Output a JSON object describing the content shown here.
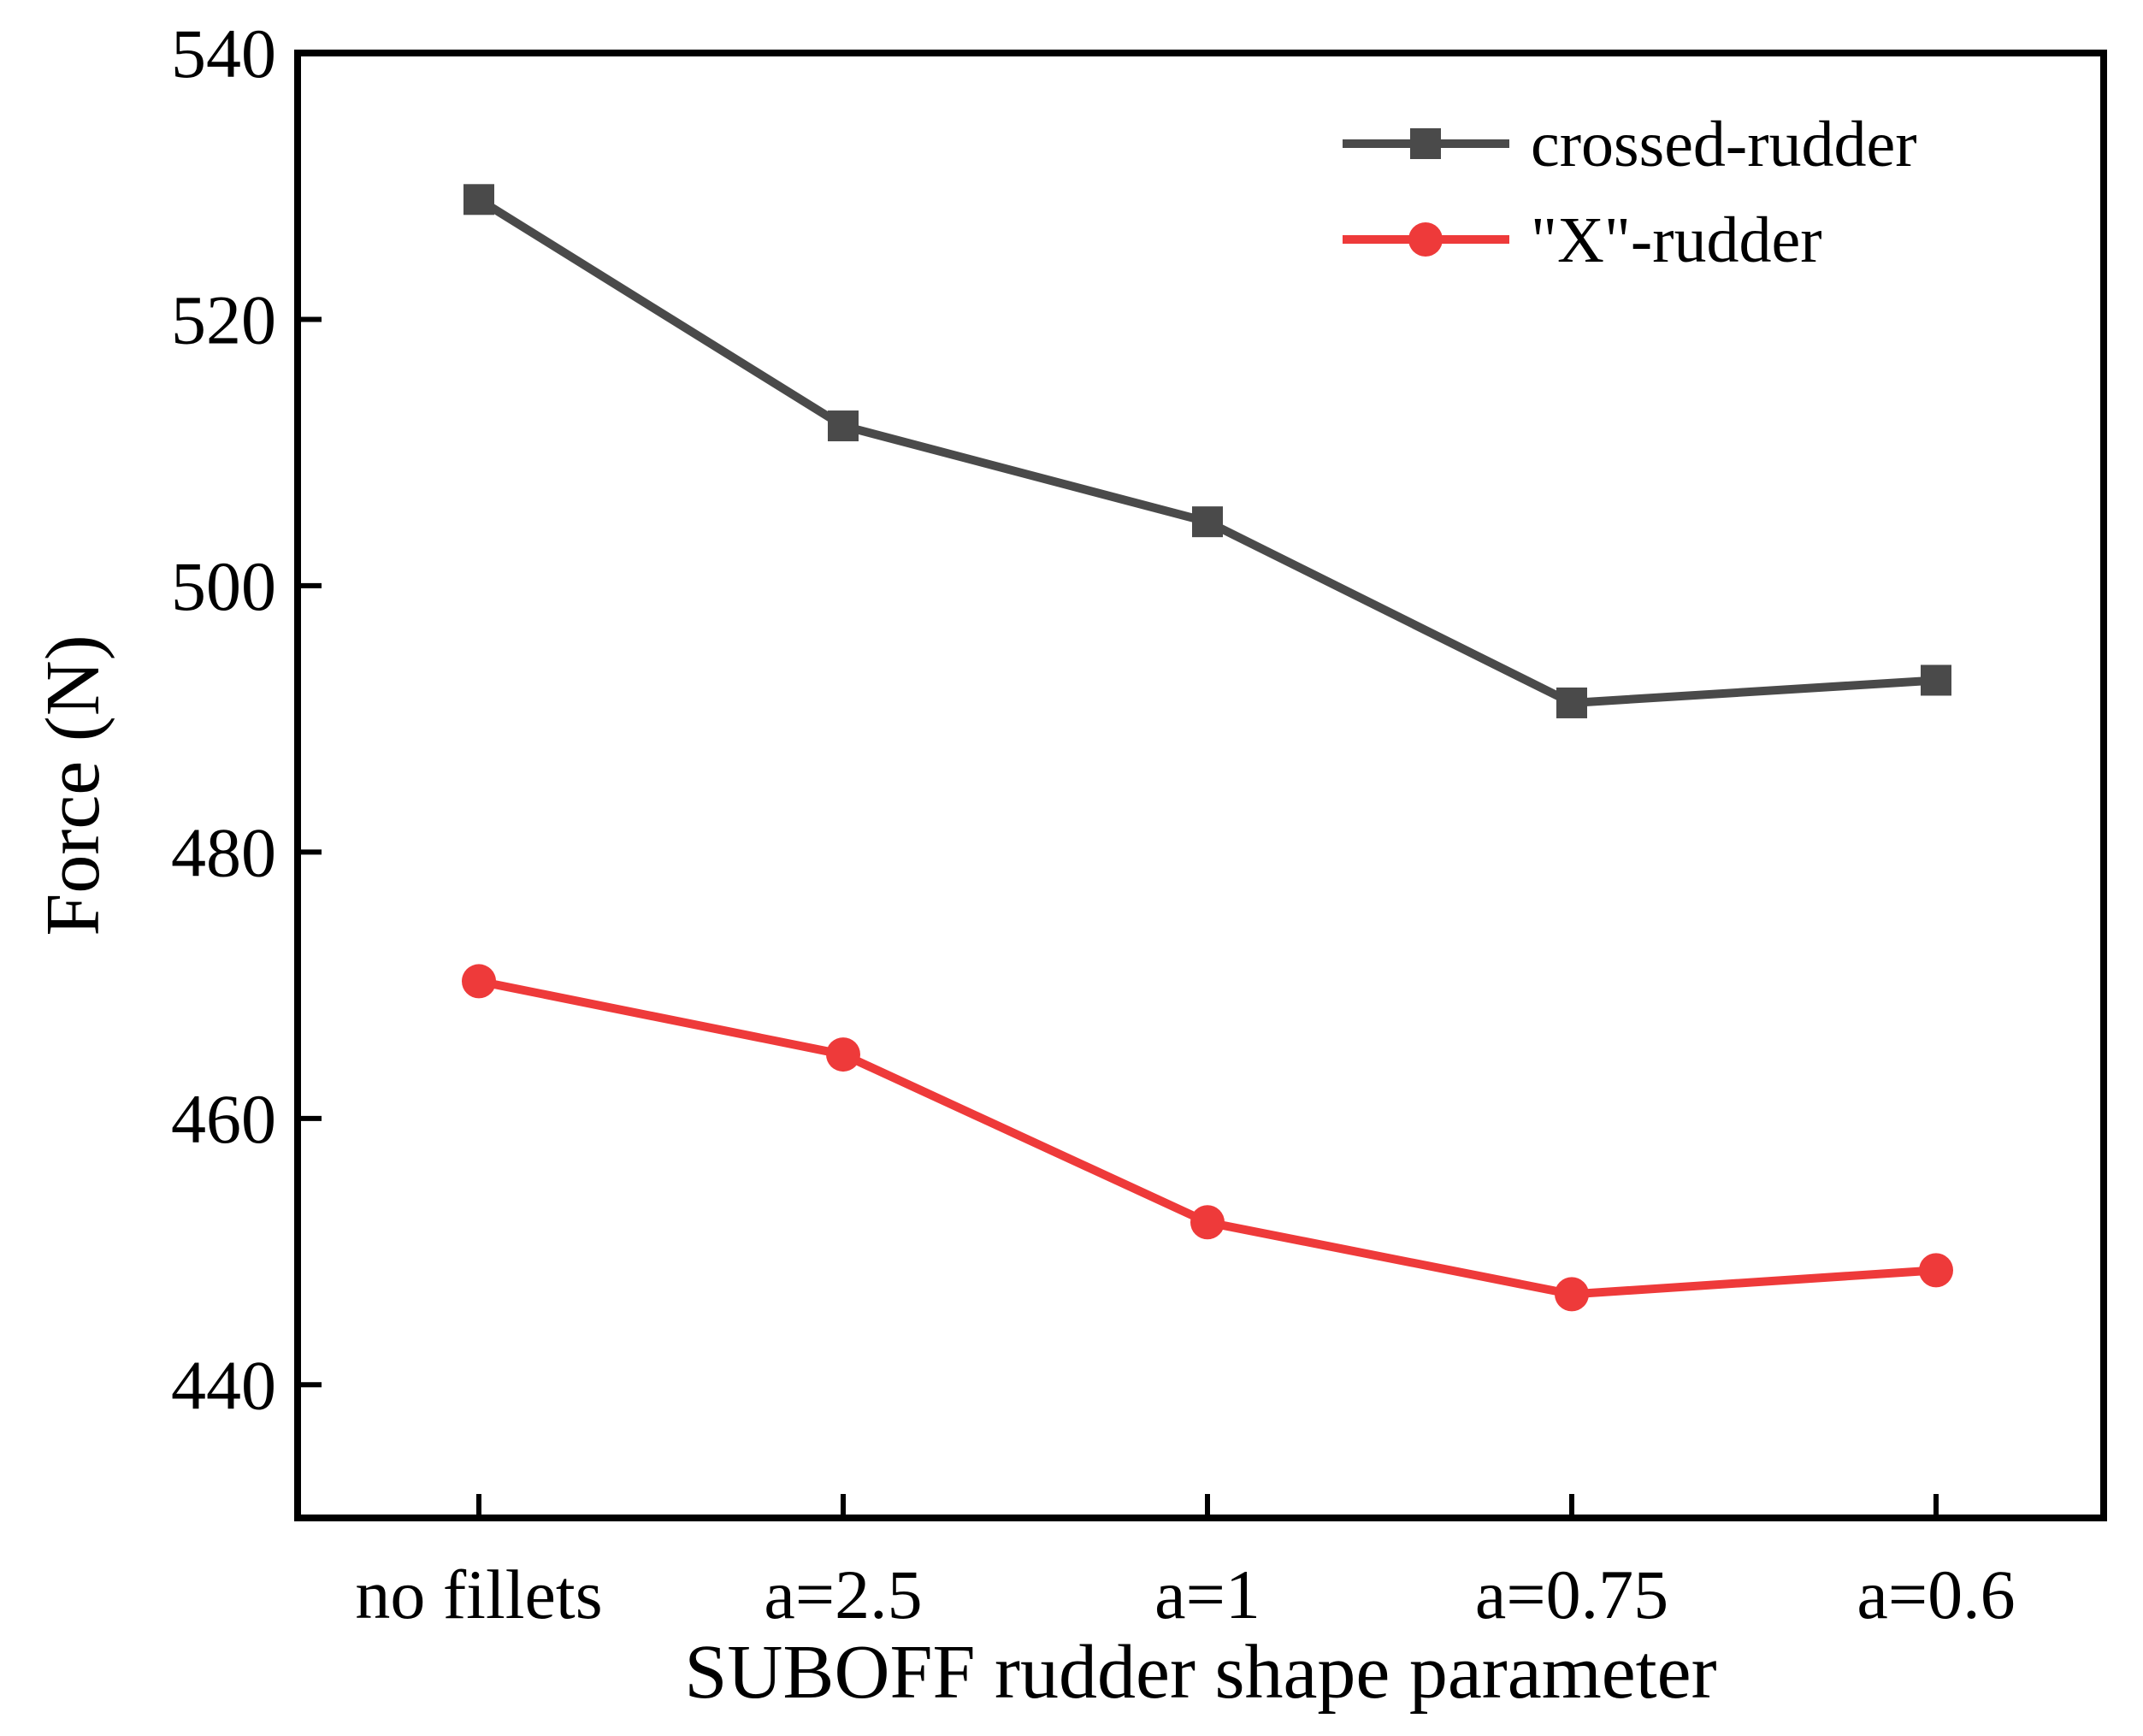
{
  "chart_data": {
    "type": "line",
    "title": "",
    "xlabel": "SUBOFF rudder shape parameter",
    "ylabel": "Force (N)",
    "categories": [
      "no fillets",
      "a=2.5",
      "a=1",
      "a=0.75",
      "a=0.6"
    ],
    "ylim": [
      430,
      540
    ],
    "yticks": [
      440,
      460,
      480,
      500,
      520,
      540
    ],
    "grid": false,
    "legend_position": "top-right",
    "series": [
      {
        "name": "crossed-rudder",
        "marker": "square",
        "color": "#4a4a4a",
        "values": [
          529.0,
          512.0,
          504.8,
          491.2,
          492.9
        ]
      },
      {
        "name": "\"X\"-rudder",
        "marker": "circle",
        "color": "#ee3a3a",
        "values": [
          470.3,
          464.8,
          452.2,
          446.8,
          448.6
        ]
      }
    ]
  }
}
